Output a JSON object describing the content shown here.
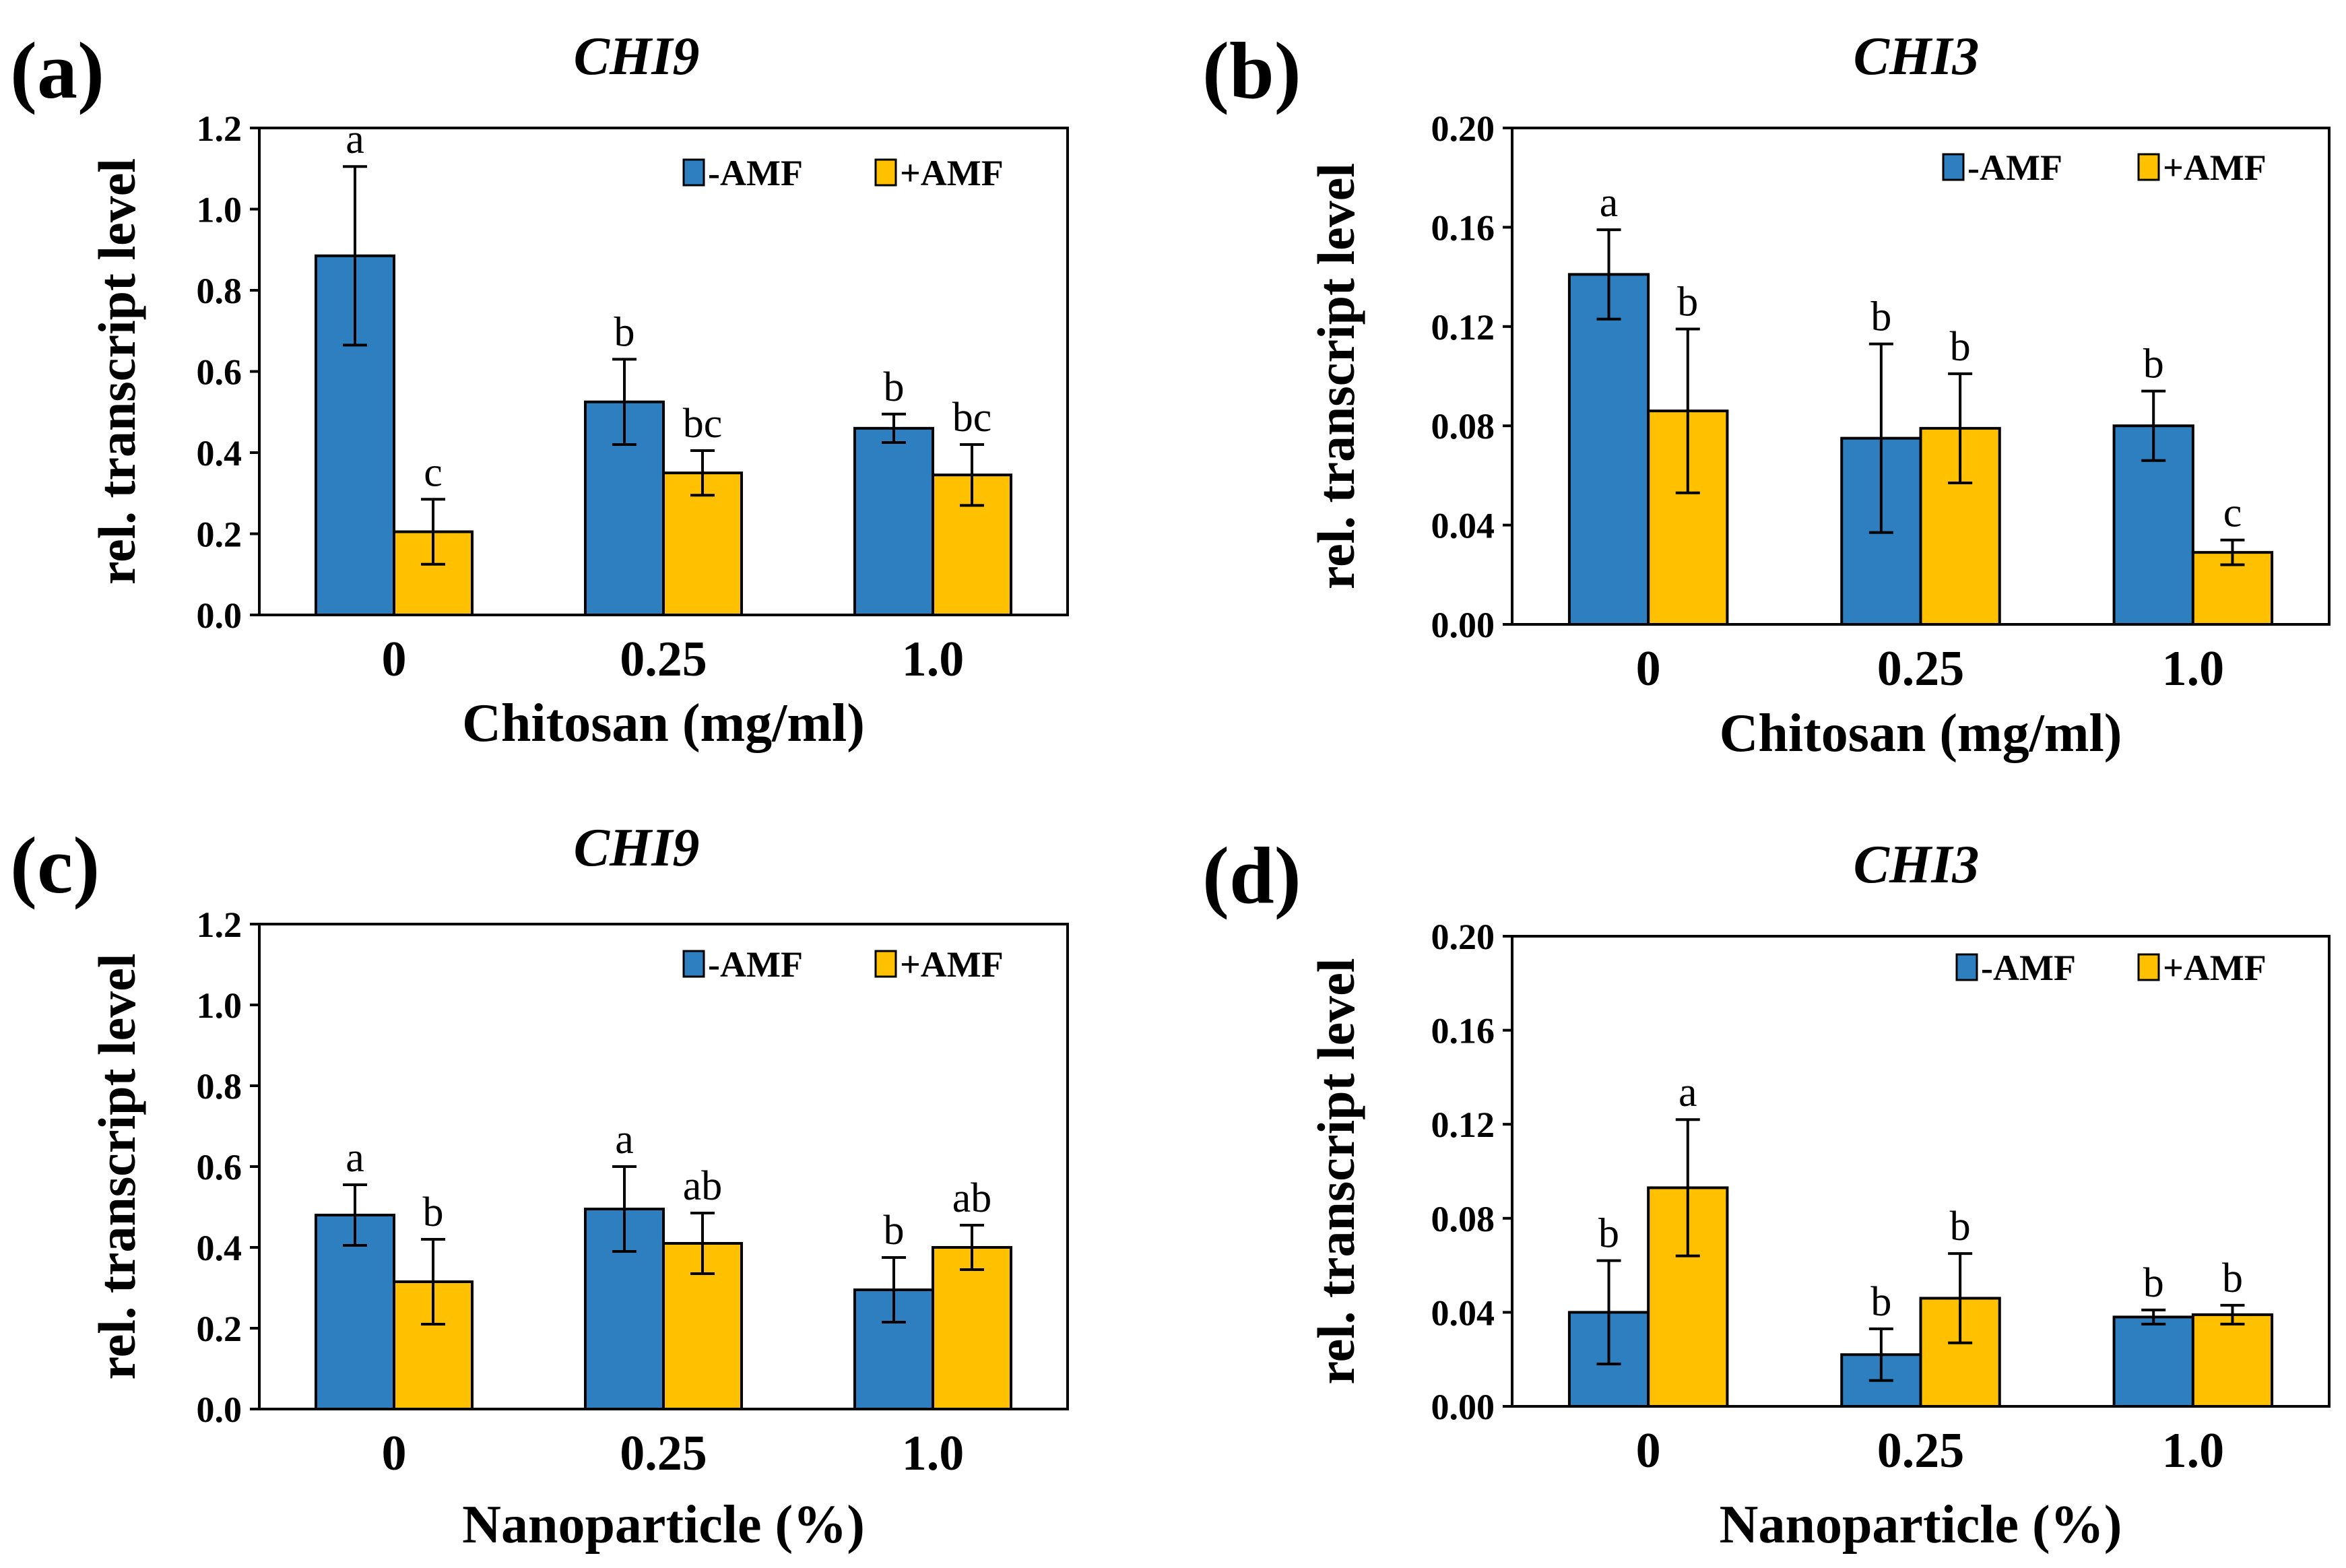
{
  "colors": {
    "minus_amf": "#2E7FC0",
    "plus_amf": "#FFC000",
    "axis": "#000000"
  },
  "chart_data": [
    {
      "type": "bar",
      "panel_label": "(a)",
      "title": "CHI9",
      "xlabel": "Chitosan (mg/ml)",
      "ylabel": "rel. transcript level",
      "categories": [
        "0",
        "0.25",
        "1.0"
      ],
      "ylim": [
        0,
        1.2
      ],
      "yticks": [
        "0.0",
        "0.2",
        "0.4",
        "0.6",
        "0.8",
        "1.0",
        "1.2"
      ],
      "legend_position": "top-right",
      "series": [
        {
          "name": "-AMF",
          "values": [
            0.885,
            0.525,
            0.46
          ],
          "errors": [
            0.22,
            0.105,
            0.035
          ],
          "letters": [
            "a",
            "b",
            "b"
          ]
        },
        {
          "name": "+AMF",
          "values": [
            0.205,
            0.35,
            0.345
          ],
          "errors": [
            0.08,
            0.055,
            0.075
          ],
          "letters": [
            "c",
            "bc",
            "bc"
          ]
        }
      ]
    },
    {
      "type": "bar",
      "panel_label": "(b)",
      "title": "CHI3",
      "xlabel": "Chitosan (mg/ml)",
      "ylabel": "rel. transcript level",
      "categories": [
        "0",
        "0.25",
        "1.0"
      ],
      "ylim": [
        0,
        0.2
      ],
      "yticks": [
        "0.00",
        "0.04",
        "0.08",
        "0.12",
        "0.16",
        "0.20"
      ],
      "legend_position": "top-right",
      "series": [
        {
          "name": "-AMF",
          "values": [
            0.141,
            0.075,
            0.08
          ],
          "errors": [
            0.018,
            0.038,
            0.014
          ],
          "letters": [
            "a",
            "b",
            "b"
          ]
        },
        {
          "name": "+AMF",
          "values": [
            0.086,
            0.079,
            0.029
          ],
          "errors": [
            0.033,
            0.022,
            0.005
          ],
          "letters": [
            "b",
            "b",
            "c"
          ]
        }
      ]
    },
    {
      "type": "bar",
      "panel_label": "(c)",
      "title": "CHI9",
      "xlabel": "Nanoparticle (%)",
      "ylabel": "rel. transcript level",
      "categories": [
        "0",
        "0.25",
        "1.0"
      ],
      "ylim": [
        0,
        1.2
      ],
      "yticks": [
        "0.0",
        "0.2",
        "0.4",
        "0.6",
        "0.8",
        "1.0",
        "1.2"
      ],
      "legend_position": "top-right",
      "series": [
        {
          "name": "-AMF",
          "values": [
            0.48,
            0.495,
            0.295
          ],
          "errors": [
            0.075,
            0.105,
            0.08
          ],
          "letters": [
            "a",
            "a",
            "b"
          ]
        },
        {
          "name": "+AMF",
          "values": [
            0.315,
            0.41,
            0.4
          ],
          "errors": [
            0.105,
            0.075,
            0.055
          ],
          "letters": [
            "b",
            "ab",
            "ab"
          ]
        }
      ]
    },
    {
      "type": "bar",
      "panel_label": "(d)",
      "title": "CHI3",
      "xlabel": "Nanoparticle (%)",
      "ylabel": "rel. transcript level",
      "categories": [
        "0",
        "0.25",
        "1.0"
      ],
      "ylim": [
        0,
        0.2
      ],
      "yticks": [
        "0.00",
        "0.04",
        "0.08",
        "0.12",
        "0.16",
        "0.20"
      ],
      "legend_position": "top-right",
      "series": [
        {
          "name": "-AMF",
          "values": [
            0.04,
            0.022,
            0.038
          ],
          "errors": [
            0.022,
            0.011,
            0.003
          ],
          "letters": [
            "b",
            "b",
            "b"
          ]
        },
        {
          "name": "+AMF",
          "values": [
            0.093,
            0.046,
            0.039
          ],
          "errors": [
            0.029,
            0.019,
            0.004
          ],
          "letters": [
            "a",
            "b",
            "b"
          ]
        }
      ]
    }
  ]
}
